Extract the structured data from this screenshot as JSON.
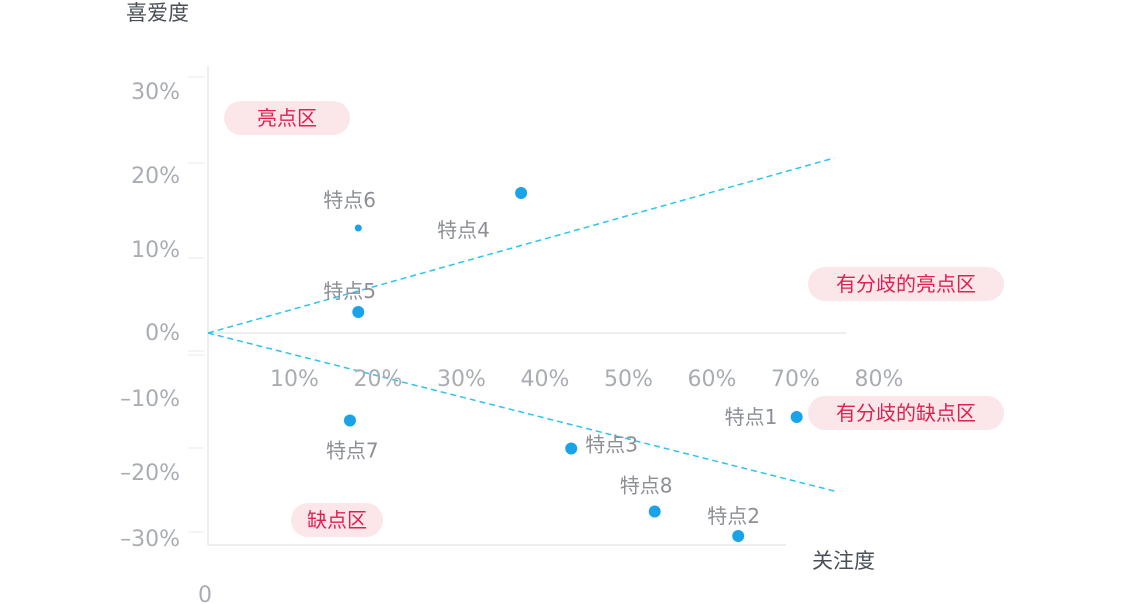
{
  "chart_data": {
    "type": "scatter",
    "xlabel": "关注度",
    "ylabel": "喜爱度",
    "origin_label": "0",
    "x_ticks": [
      {
        "value": 10,
        "label": "10%"
      },
      {
        "value": 20,
        "label": "20%"
      },
      {
        "value": 30,
        "label": "30%"
      },
      {
        "value": 40,
        "label": "40%"
      },
      {
        "value": 50,
        "label": "50%"
      },
      {
        "value": 60,
        "label": "60%"
      },
      {
        "value": 70,
        "label": "70%"
      },
      {
        "value": 80,
        "label": "80%"
      }
    ],
    "y_ticks": [
      {
        "value": 30,
        "label": "30%"
      },
      {
        "value": 20,
        "label": "20%"
      },
      {
        "value": 10,
        "label": "10%"
      },
      {
        "value": 0,
        "label": "0%"
      },
      {
        "value": -10,
        "label": "–10%"
      },
      {
        "value": -20,
        "label": "–20%"
      },
      {
        "value": -30,
        "label": "–30%"
      }
    ],
    "xlim": [
      0,
      80
    ],
    "ylim": [
      -30,
      30
    ],
    "points": [
      {
        "label": "特点1",
        "x": 70.5,
        "y": -12
      },
      {
        "label": "特点2",
        "x": 63.5,
        "y": -29
      },
      {
        "label": "特点3",
        "x": 43.5,
        "y": -16.5
      },
      {
        "label": "特点4",
        "x": 37.5,
        "y": 20
      },
      {
        "label": "特点5",
        "x": 18,
        "y": 3
      },
      {
        "label": "特点6",
        "x": 18,
        "y": 15
      },
      {
        "label": "特点7",
        "x": 17,
        "y": -12.5
      },
      {
        "label": "特点8",
        "x": 53.5,
        "y": -25.5
      }
    ],
    "reference_lines": [
      {
        "from": [
          0,
          0
        ],
        "to": [
          75,
          25
        ]
      },
      {
        "from": [
          0,
          0
        ],
        "to": [
          75,
          -23
        ]
      }
    ],
    "regions": [
      {
        "label": "亮点区",
        "accent": "#e0214f"
      },
      {
        "label": "有分歧的亮点区",
        "accent": "#e0214f"
      },
      {
        "label": "有分歧的缺点区",
        "accent": "#e0214f"
      },
      {
        "label": "缺点区",
        "accent": "#e0214f"
      }
    ],
    "colors": {
      "point": "#1aa3e8",
      "reference_line": "#2ec4ef",
      "axis": "#e6e8eb",
      "region_bg": "#fbe6ea",
      "region_text": "#e0214f"
    },
    "grid": false
  }
}
